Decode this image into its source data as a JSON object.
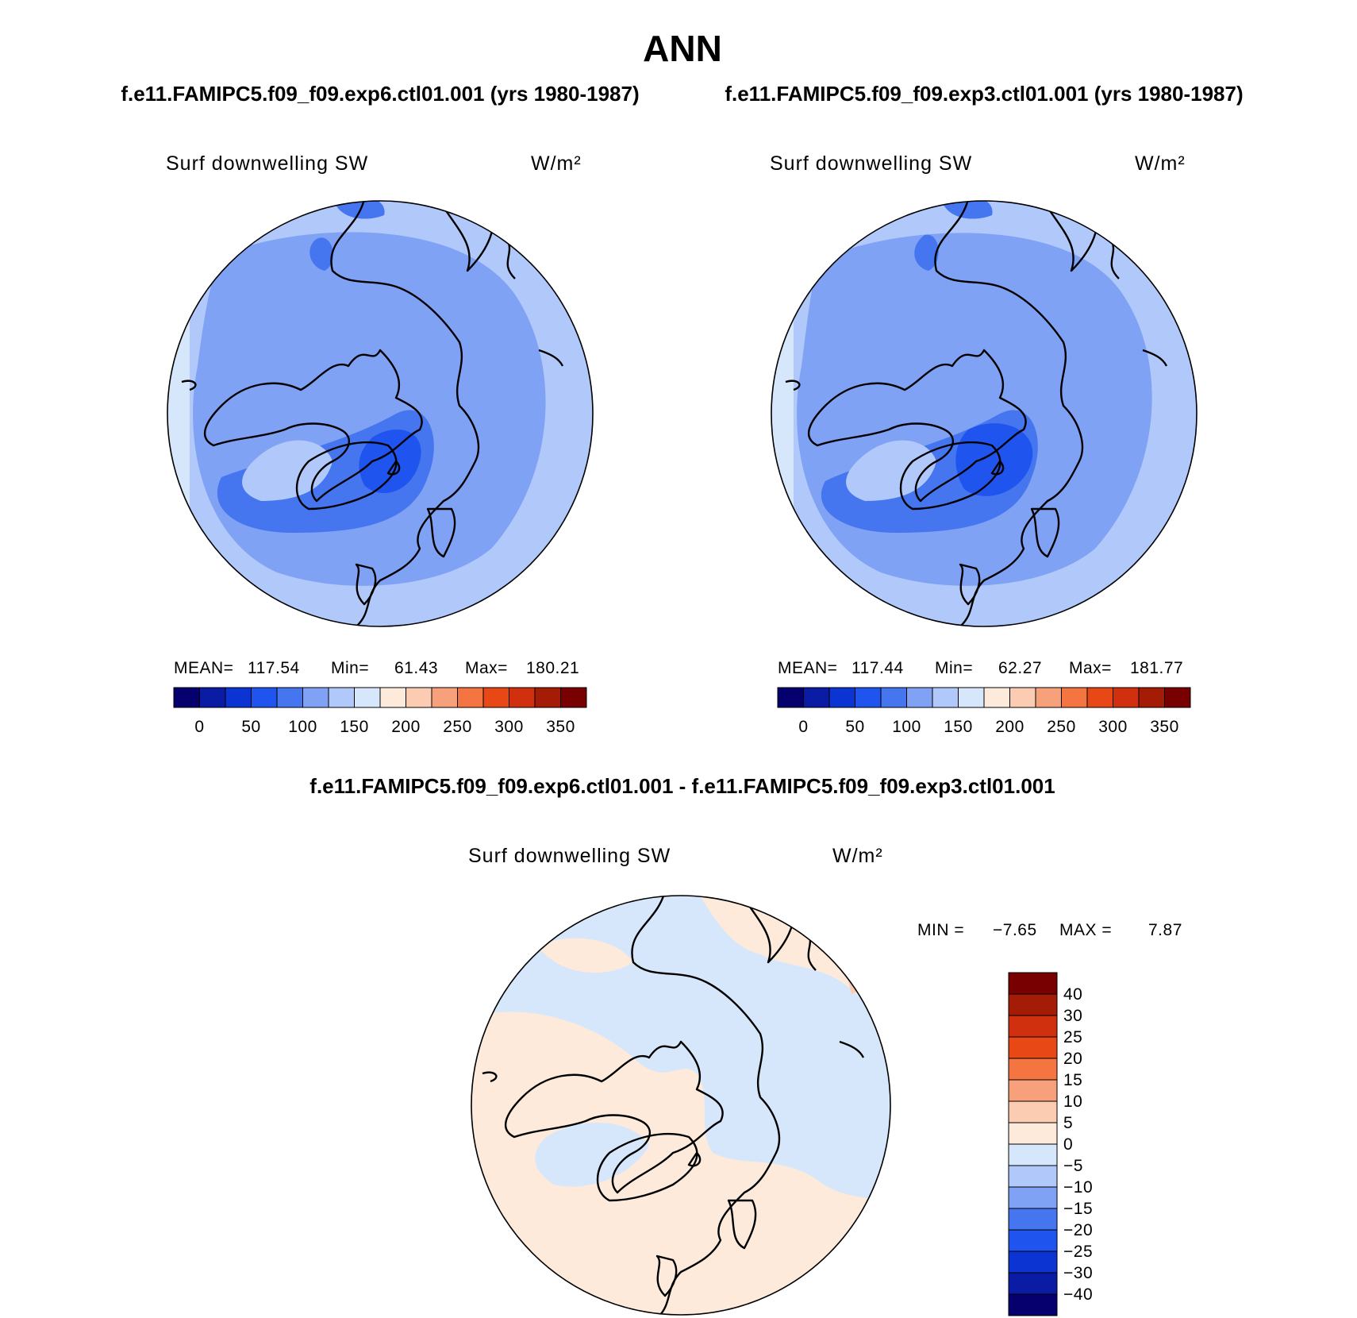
{
  "title": "ANN",
  "panels": [
    {
      "case": "f.e11.FAMIPC5.f09_f09.exp6.ctl01.001 (yrs 1980-1987)",
      "variable": "Surf downwelling SW",
      "units": "W/m²",
      "stats": [
        {
          "label": "MEAN=",
          "value": "117.54"
        },
        {
          "label": "Min=",
          "value": "61.43"
        },
        {
          "label": "Max=",
          "value": "180.21"
        }
      ]
    },
    {
      "case": "f.e11.FAMIPC5.f09_f09.exp3.ctl01.001 (yrs 1980-1987)",
      "variable": "Surf downwelling SW",
      "units": "W/m²",
      "stats": [
        {
          "label": "MEAN=",
          "value": "117.44"
        },
        {
          "label": "Min=",
          "value": "62.27"
        },
        {
          "label": "Max=",
          "value": "181.77"
        }
      ]
    }
  ],
  "colorbar": {
    "colors": [
      "#06006e",
      "#0a1ca4",
      "#0b34d2",
      "#1f54ef",
      "#4576ef",
      "#7fa2f4",
      "#b1c9fa",
      "#d7e7fb",
      "#fdeadb",
      "#fbccb1",
      "#f6a17b",
      "#f47541",
      "#e74816",
      "#d0300e",
      "#a41c06",
      "#780000"
    ],
    "ticks": [
      "0",
      "50",
      "100",
      "150",
      "200",
      "250",
      "300",
      "350"
    ]
  },
  "difference": {
    "case": "f.e11.FAMIPC5.f09_f09.exp6.ctl01.001 - f.e11.FAMIPC5.f09_f09.exp3.ctl01.001",
    "variable": "Surf downwelling SW",
    "units": "W/m²",
    "stats": [
      {
        "label": "MIN =",
        "value": "−7.65"
      },
      {
        "label": "MAX =",
        "value": "7.87"
      }
    ],
    "colorbar": {
      "colors": [
        "#06006e",
        "#0a1ca4",
        "#0b34d2",
        "#1f54ef",
        "#4576ef",
        "#7fa2f4",
        "#b1c9fa",
        "#d7e7fb",
        "#fdeadb",
        "#fbccb1",
        "#f6a17b",
        "#f47541",
        "#e74816",
        "#d0300e",
        "#a41c06",
        "#780000"
      ],
      "ticks": [
        "40",
        "30",
        "25",
        "20",
        "15",
        "10",
        "5",
        "0",
        "−5",
        "−10",
        "−15",
        "−20",
        "−25",
        "−30",
        "−40"
      ]
    }
  }
}
